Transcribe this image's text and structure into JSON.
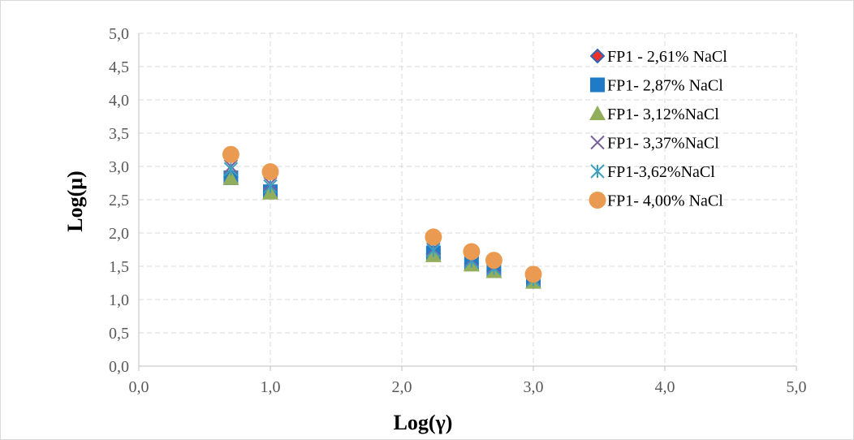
{
  "chart_data": {
    "type": "scatter",
    "title": "",
    "xlabel": "Log(γ)",
    "ylabel": "Log(μ)",
    "xlim": [
      0,
      5
    ],
    "ylim": [
      0,
      5
    ],
    "xticks": [
      "0,0",
      "1,0",
      "2,0",
      "3,0",
      "4,0",
      "5,0"
    ],
    "yticks": [
      "0,0",
      "0,5",
      "1,0",
      "1,5",
      "2,0",
      "2,5",
      "3,0",
      "3,5",
      "4,0",
      "4,5",
      "5,0"
    ],
    "grid": true,
    "legend_position": "top-right",
    "series": [
      {
        "name": "FP1 - 2,61% NaCl",
        "marker": "diamond",
        "color": "#e8322b",
        "edge": "#2f63b6",
        "x": [
          0.7,
          1.0,
          2.24,
          2.53,
          2.7,
          3.0
        ],
        "y": [
          2.84,
          2.62,
          1.69,
          1.54,
          1.44,
          1.27
        ]
      },
      {
        "name": "FP1- 2,87% NaCl",
        "marker": "square",
        "color": "#1f7bc8",
        "x": [
          0.7,
          1.0,
          2.24,
          2.53,
          2.7,
          3.0
        ],
        "y": [
          2.83,
          2.62,
          1.7,
          1.55,
          1.45,
          1.28
        ]
      },
      {
        "name": "FP1- 3,12%NaCl",
        "marker": "triangle",
        "color": "#92ad5c",
        "x": [
          0.7,
          1.0,
          2.24,
          2.53,
          2.7,
          3.0
        ],
        "y": [
          2.82,
          2.6,
          1.66,
          1.52,
          1.42,
          1.26
        ]
      },
      {
        "name": "FP1- 3,37%NaCl",
        "marker": "x",
        "color": "#7a6199",
        "x": [
          0.7,
          1.0,
          2.24,
          2.53,
          2.7,
          3.0
        ],
        "y": [
          3.0,
          2.74,
          1.76,
          1.6,
          1.49,
          1.31
        ]
      },
      {
        "name": "FP1-3,62%NaCl",
        "marker": "star",
        "color": "#3a9fc2",
        "x": [
          0.7,
          1.0,
          2.24,
          2.53,
          2.7,
          3.0
        ],
        "y": [
          2.96,
          2.7,
          1.74,
          1.58,
          1.47,
          1.3
        ]
      },
      {
        "name": "FP1- 4,00% NaCl",
        "marker": "circle",
        "color": "#eb9b51",
        "x": [
          0.7,
          1.0,
          2.24,
          2.53,
          2.7,
          3.0
        ],
        "y": [
          3.18,
          2.92,
          1.94,
          1.72,
          1.59,
          1.38
        ]
      }
    ]
  }
}
